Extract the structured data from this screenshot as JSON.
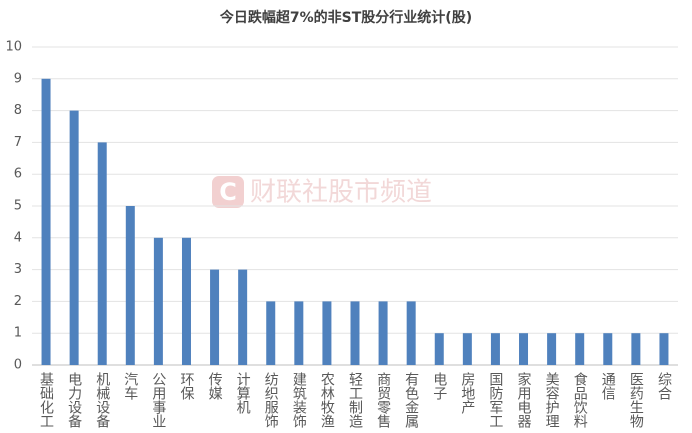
{
  "chart_data": {
    "type": "bar",
    "title": "今日跌幅超7%的非ST股分行业统计(股)",
    "watermark": "财联社股市频道",
    "categories": [
      "基础化工",
      "电力设备",
      "机械设备",
      "汽车",
      "公用事业",
      "环保",
      "传媒",
      "计算机",
      "纺织服饰",
      "建筑装饰",
      "农林牧渔",
      "轻工制造",
      "商贸零售",
      "有色金属",
      "电子",
      "房地产",
      "国防军工",
      "家用电器",
      "美容护理",
      "食品饮料",
      "通信",
      "医药生物",
      "综合"
    ],
    "values": [
      9,
      8,
      7,
      5,
      4,
      4,
      3,
      3,
      2,
      2,
      2,
      2,
      2,
      2,
      1,
      1,
      1,
      1,
      1,
      1,
      1,
      1,
      1
    ],
    "color": "#4f81bd",
    "ylim": [
      0,
      10
    ],
    "yticks": [
      0,
      1,
      2,
      3,
      4,
      5,
      6,
      7,
      8,
      9,
      10
    ],
    "grid": true
  }
}
